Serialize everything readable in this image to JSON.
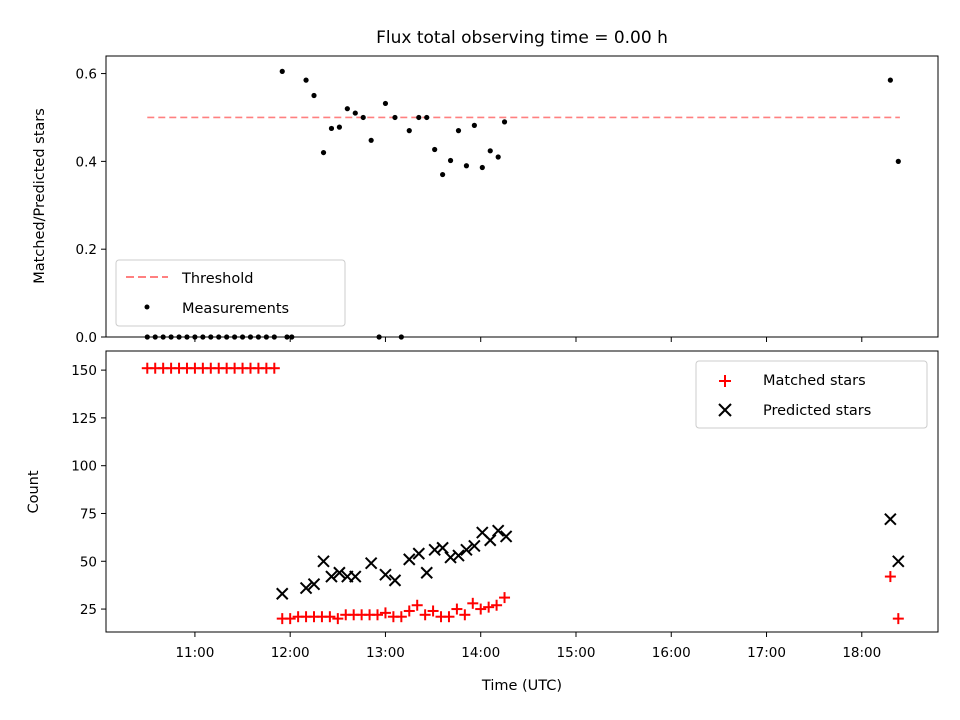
{
  "chart_data": [
    {
      "type": "scatter",
      "title": "Flux total observing time = 0.00 h",
      "xlabel": "",
      "ylabel": "Matched/Predicted stars",
      "xlim": [
        "10:04",
        "18:48"
      ],
      "ylim": [
        0,
        0.64
      ],
      "yticks": [
        "0.0",
        "0.2",
        "0.4",
        "0.6"
      ],
      "legend_position": "lower-left",
      "threshold": {
        "name": "Threshold",
        "value": 0.5,
        "x_start": "10:30",
        "x_end": "18:24",
        "color": "#ff8080"
      },
      "series": [
        {
          "name": "Measurements",
          "color": "#000000",
          "points": [
            [
              "10:30",
              0.0
            ],
            [
              "10:35",
              0.0
            ],
            [
              "10:40",
              0.0
            ],
            [
              "10:45",
              0.0
            ],
            [
              "10:50",
              0.0
            ],
            [
              "10:55",
              0.0
            ],
            [
              "11:00",
              0.0
            ],
            [
              "11:05",
              0.0
            ],
            [
              "11:10",
              0.0
            ],
            [
              "11:15",
              0.0
            ],
            [
              "11:20",
              0.0
            ],
            [
              "11:25",
              0.0
            ],
            [
              "11:30",
              0.0
            ],
            [
              "11:35",
              0.0
            ],
            [
              "11:40",
              0.0
            ],
            [
              "11:45",
              0.0
            ],
            [
              "11:50",
              0.0
            ],
            [
              "11:55",
              0.605
            ],
            [
              "11:58",
              0.0
            ],
            [
              "12:01",
              0.0
            ],
            [
              "12:10",
              0.585
            ],
            [
              "12:15",
              0.55
            ],
            [
              "12:21",
              0.42
            ],
            [
              "12:26",
              0.475
            ],
            [
              "12:31",
              0.478
            ],
            [
              "12:36",
              0.52
            ],
            [
              "12:41",
              0.51
            ],
            [
              "12:46",
              0.5
            ],
            [
              "12:51",
              0.448
            ],
            [
              "12:56",
              0.0
            ],
            [
              "13:00",
              0.532
            ],
            [
              "13:06",
              0.5
            ],
            [
              "13:10",
              0.0
            ],
            [
              "13:15",
              0.47
            ],
            [
              "13:21",
              0.5
            ],
            [
              "13:26",
              0.5
            ],
            [
              "13:31",
              0.427
            ],
            [
              "13:36",
              0.37
            ],
            [
              "13:41",
              0.402
            ],
            [
              "13:46",
              0.47
            ],
            [
              "13:51",
              0.39
            ],
            [
              "13:56",
              0.482
            ],
            [
              "14:01",
              0.386
            ],
            [
              "14:06",
              0.424
            ],
            [
              "14:11",
              0.41
            ],
            [
              "14:15",
              0.49
            ],
            [
              "18:18",
              0.585
            ],
            [
              "18:23",
              0.4
            ]
          ]
        }
      ]
    },
    {
      "type": "scatter",
      "title": "",
      "xlabel": "Time (UTC)",
      "ylabel": "Count",
      "xlim": [
        "10:04",
        "18:48"
      ],
      "ylim": [
        13,
        160
      ],
      "yticks": [
        "25",
        "50",
        "75",
        "100",
        "125",
        "150"
      ],
      "xticks": [
        "11:00",
        "12:00",
        "13:00",
        "14:00",
        "15:00",
        "16:00",
        "17:00",
        "18:00"
      ],
      "legend_position": "upper-right",
      "series": [
        {
          "name": "Matched stars",
          "marker": "plus",
          "color": "#ff0000",
          "points": [
            [
              "10:30",
              151
            ],
            [
              "10:35",
              151
            ],
            [
              "10:40",
              151
            ],
            [
              "10:45",
              151
            ],
            [
              "10:50",
              151
            ],
            [
              "10:55",
              151
            ],
            [
              "11:00",
              151
            ],
            [
              "11:05",
              151
            ],
            [
              "11:10",
              151
            ],
            [
              "11:15",
              151
            ],
            [
              "11:20",
              151
            ],
            [
              "11:25",
              151
            ],
            [
              "11:30",
              151
            ],
            [
              "11:35",
              151
            ],
            [
              "11:40",
              151
            ],
            [
              "11:45",
              151
            ],
            [
              "11:50",
              151
            ],
            [
              "11:55",
              20
            ],
            [
              "12:00",
              20
            ],
            [
              "12:05",
              21
            ],
            [
              "12:10",
              21
            ],
            [
              "12:15",
              21
            ],
            [
              "12:20",
              21
            ],
            [
              "12:25",
              21
            ],
            [
              "12:30",
              20
            ],
            [
              "12:35",
              22
            ],
            [
              "12:40",
              22
            ],
            [
              "12:45",
              22
            ],
            [
              "12:50",
              22
            ],
            [
              "12:55",
              22
            ],
            [
              "13:00",
              23
            ],
            [
              "13:05",
              21
            ],
            [
              "13:10",
              21
            ],
            [
              "13:15",
              24
            ],
            [
              "13:20",
              27
            ],
            [
              "13:25",
              22
            ],
            [
              "13:30",
              24
            ],
            [
              "13:35",
              21
            ],
            [
              "13:40",
              21
            ],
            [
              "13:45",
              25
            ],
            [
              "13:50",
              22
            ],
            [
              "13:55",
              28
            ],
            [
              "14:00",
              25
            ],
            [
              "14:05",
              26
            ],
            [
              "14:10",
              27
            ],
            [
              "14:15",
              31
            ],
            [
              "18:18",
              42
            ],
            [
              "18:23",
              20
            ]
          ]
        },
        {
          "name": "Predicted stars",
          "marker": "x",
          "color": "#000000",
          "points": [
            [
              "11:55",
              33
            ],
            [
              "12:10",
              36
            ],
            [
              "12:15",
              38
            ],
            [
              "12:21",
              50
            ],
            [
              "12:26",
              42
            ],
            [
              "12:31",
              44
            ],
            [
              "12:36",
              42
            ],
            [
              "12:41",
              42
            ],
            [
              "12:51",
              49
            ],
            [
              "13:00",
              43
            ],
            [
              "13:06",
              40
            ],
            [
              "13:15",
              51
            ],
            [
              "13:21",
              54
            ],
            [
              "13:26",
              44
            ],
            [
              "13:31",
              56
            ],
            [
              "13:36",
              57
            ],
            [
              "13:41",
              52
            ],
            [
              "13:46",
              53
            ],
            [
              "13:51",
              56
            ],
            [
              "13:56",
              58
            ],
            [
              "14:01",
              65
            ],
            [
              "14:06",
              61
            ],
            [
              "14:11",
              66
            ],
            [
              "14:16",
              63
            ],
            [
              "18:18",
              72
            ],
            [
              "18:23",
              50
            ]
          ]
        }
      ]
    }
  ]
}
